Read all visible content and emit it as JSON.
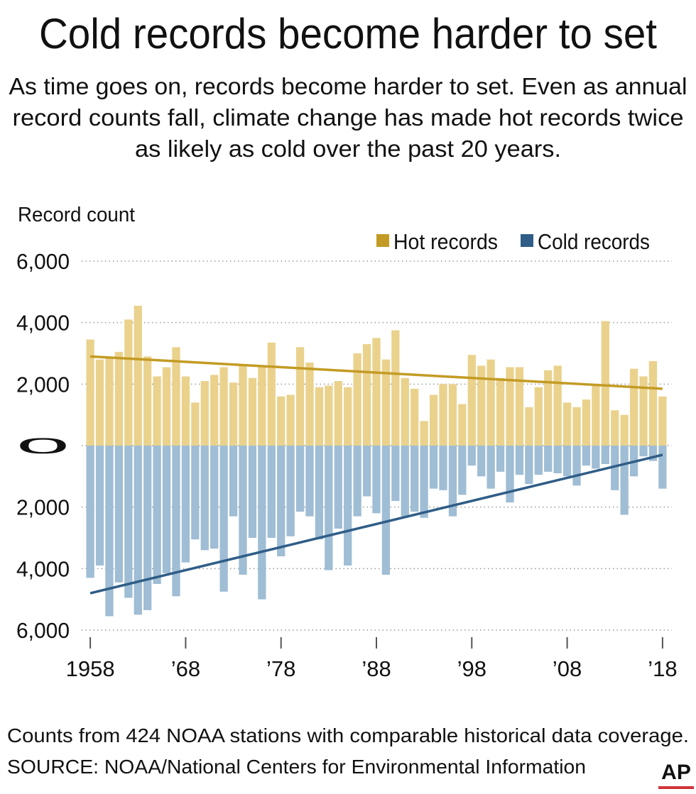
{
  "chart_data": {
    "type": "bar",
    "title": "Cold records become harder to set",
    "subtitle": [
      "As time goes on, records become harder to set. Even as annual",
      "record counts fall, climate change has made hot records twice",
      "as likely as cold over the past 20 years."
    ],
    "y_label": "Record count",
    "x": [
      1958,
      1959,
      1960,
      1961,
      1962,
      1963,
      1964,
      1965,
      1966,
      1967,
      1968,
      1969,
      1970,
      1971,
      1972,
      1973,
      1974,
      1975,
      1976,
      1977,
      1978,
      1979,
      1980,
      1981,
      1982,
      1983,
      1984,
      1985,
      1986,
      1987,
      1988,
      1989,
      1990,
      1991,
      1992,
      1993,
      1994,
      1995,
      1996,
      1997,
      1998,
      1999,
      2000,
      2001,
      2002,
      2003,
      2004,
      2005,
      2006,
      2007,
      2008,
      2009,
      2010,
      2011,
      2012,
      2013,
      2014,
      2015,
      2016,
      2017,
      2018
    ],
    "series": [
      {
        "name": "Hot records",
        "color": "#c39b24",
        "bar_color": "#ead28d",
        "values": [
          3450,
          2800,
          2850,
          3050,
          4100,
          4550,
          2900,
          2250,
          2550,
          3200,
          2250,
          1400,
          2100,
          2300,
          2550,
          2050,
          2600,
          2200,
          2600,
          3350,
          1600,
          1650,
          3200,
          2700,
          1900,
          1950,
          2100,
          1900,
          3000,
          3300,
          3500,
          2800,
          3750,
          2200,
          1850,
          800,
          1650,
          2000,
          2000,
          1350,
          2950,
          2600,
          2800,
          2200,
          2550,
          2550,
          1250,
          1900,
          2450,
          2600,
          1400,
          1250,
          1500,
          2000,
          4050,
          1150,
          1000,
          2500,
          2250,
          2750,
          1600
        ],
        "trend": {
          "x": [
            1958,
            2018
          ],
          "values": [
            2900,
            1850
          ]
        }
      },
      {
        "name": "Cold records",
        "color": "#2f5d87",
        "bar_color": "#9fbdd4",
        "values": [
          -4300,
          -3900,
          -5550,
          -4450,
          -4950,
          -5500,
          -5350,
          -4500,
          -4150,
          -4900,
          -3800,
          -3050,
          -3400,
          -3350,
          -4750,
          -2300,
          -4200,
          -3000,
          -5000,
          -3000,
          -3600,
          -2950,
          -2150,
          -2300,
          -3050,
          -4050,
          -2700,
          -3900,
          -2300,
          -1650,
          -2200,
          -4200,
          -1800,
          -2300,
          -2150,
          -2350,
          -1400,
          -1450,
          -2300,
          -1600,
          -650,
          -1000,
          -1400,
          -850,
          -1850,
          -950,
          -1250,
          -950,
          -850,
          -900,
          -1000,
          -1300,
          -650,
          -750,
          -600,
          -1450,
          -2250,
          -1000,
          -350,
          -500,
          -1400
        ],
        "trend": {
          "x": [
            1958,
            2018
          ],
          "values": [
            -4800,
            -300
          ]
        }
      }
    ],
    "xlim": [
      1956.8,
      2019.2
    ],
    "xticks": [
      1958,
      {
        "value": 1968,
        "label": "’68"
      },
      {
        "value": 1978,
        "label": "’78"
      },
      {
        "value": 1988,
        "label": "’88"
      },
      {
        "value": 1998,
        "label": "’98"
      },
      {
        "value": 2008,
        "label": "’08"
      },
      {
        "value": 2018,
        "label": "’18"
      }
    ],
    "ylim": [
      -6000,
      6000
    ],
    "yticks": [
      {
        "value": 6000,
        "label": "6,000"
      },
      {
        "value": 4000,
        "label": "4,000"
      },
      {
        "value": 2000,
        "label": "2,000"
      },
      0,
      {
        "value": -2000,
        "label": "2,000"
      },
      {
        "value": -4000,
        "label": "4,000"
      },
      {
        "value": -6000,
        "label": "6,000"
      }
    ],
    "grid": true,
    "note": "Counts from 424 NOAA stations with comparable historical data coverage.",
    "source": "SOURCE: NOAA/National Centers for Environmental Information",
    "logo": "AP"
  }
}
